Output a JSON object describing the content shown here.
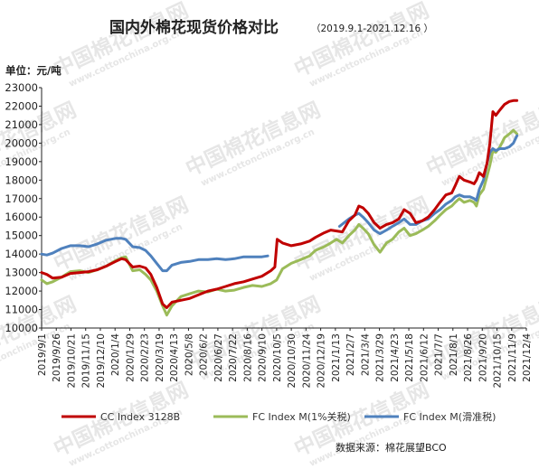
{
  "title": "国内外棉花现货价格对比",
  "subtitle": "（2019.9.1-2021.12.16 ）",
  "unit_label": "单位：元/吨",
  "source_text": "数据来源：棉花展望BCO",
  "watermark": {
    "main": "中国棉花信息网",
    "url": "www.cottonchina.org.cn"
  },
  "chart_data": {
    "type": "line",
    "title": "国内外棉花现货价格对比",
    "subtitle": "（2019.9.1-2021.12.16 ）",
    "ylabel": "单位：元/吨",
    "ylim": [
      10000,
      23000
    ],
    "yticks": [
      10000,
      11000,
      12000,
      13000,
      14000,
      15000,
      16000,
      17000,
      18000,
      19000,
      20000,
      21000,
      22000,
      23000
    ],
    "xlim": [
      "2019-09-01",
      "2021-12-04"
    ],
    "xtick_labels": [
      "2019/9/1",
      "2019/9/26",
      "2019/10/21",
      "2019/11/15",
      "2019/12/10",
      "2020/1/4",
      "2020/1/29",
      "2020/2/23",
      "2020/3/19",
      "2020/4/13",
      "2020/5/8",
      "2020/6/2",
      "2020/6/27",
      "2020/7/22",
      "2020/8/16",
      "2020/9/10",
      "2020/10/5",
      "2020/10/30",
      "2020/11/24",
      "2020/12/19",
      "2021/1/13",
      "2021/2/7",
      "2021/3/4",
      "2021/3/29",
      "2021/4/23",
      "2021/5/18",
      "2021/6/12",
      "2021/7/7",
      "2021/8/1",
      "2021/8/26",
      "2021/9/20",
      "2021/10/15",
      "2021/11/9",
      "2021/12/4"
    ],
    "grid": false,
    "legend": "bottom",
    "series": [
      {
        "name": "CC Index 3128B",
        "color": "#c00000",
        "points": [
          [
            "2019-09-01",
            13000
          ],
          [
            "2019-09-10",
            12900
          ],
          [
            "2019-09-20",
            12700
          ],
          [
            "2019-10-05",
            12750
          ],
          [
            "2019-10-20",
            12950
          ],
          [
            "2019-11-05",
            13000
          ],
          [
            "2019-11-20",
            13050
          ],
          [
            "2019-12-05",
            13150
          ],
          [
            "2019-12-20",
            13350
          ],
          [
            "2020-01-05",
            13600
          ],
          [
            "2020-01-15",
            13750
          ],
          [
            "2020-01-22",
            13700
          ],
          [
            "2020-02-03",
            13300
          ],
          [
            "2020-02-15",
            13350
          ],
          [
            "2020-02-25",
            13250
          ],
          [
            "2020-03-05",
            12900
          ],
          [
            "2020-03-15",
            12200
          ],
          [
            "2020-03-25",
            11300
          ],
          [
            "2020-04-01",
            11100
          ],
          [
            "2020-04-10",
            11400
          ],
          [
            "2020-04-25",
            11500
          ],
          [
            "2020-05-10",
            11600
          ],
          [
            "2020-05-25",
            11800
          ],
          [
            "2020-06-10",
            12000
          ],
          [
            "2020-06-25",
            12100
          ],
          [
            "2020-07-10",
            12250
          ],
          [
            "2020-07-25",
            12400
          ],
          [
            "2020-08-10",
            12500
          ],
          [
            "2020-08-25",
            12650
          ],
          [
            "2020-09-10",
            12800
          ],
          [
            "2020-09-25",
            13100
          ],
          [
            "2020-10-02",
            13300
          ],
          [
            "2020-10-06",
            14800
          ],
          [
            "2020-10-15",
            14600
          ],
          [
            "2020-10-30",
            14450
          ],
          [
            "2020-11-15",
            14550
          ],
          [
            "2020-11-30",
            14700
          ],
          [
            "2020-12-10",
            14900
          ],
          [
            "2020-12-25",
            15150
          ],
          [
            "2021-01-05",
            15300
          ],
          [
            "2021-01-15",
            15250
          ],
          [
            "2021-01-25",
            15200
          ],
          [
            "2021-02-05",
            15800
          ],
          [
            "2021-02-15",
            16100
          ],
          [
            "2021-02-22",
            16600
          ],
          [
            "2021-03-01",
            16500
          ],
          [
            "2021-03-10",
            16200
          ],
          [
            "2021-03-20",
            15700
          ],
          [
            "2021-03-30",
            15400
          ],
          [
            "2021-04-10",
            15600
          ],
          [
            "2021-04-20",
            15700
          ],
          [
            "2021-05-01",
            15900
          ],
          [
            "2021-05-10",
            16400
          ],
          [
            "2021-05-20",
            16200
          ],
          [
            "2021-05-30",
            15700
          ],
          [
            "2021-06-10",
            15800
          ],
          [
            "2021-06-20",
            16000
          ],
          [
            "2021-07-01",
            16400
          ],
          [
            "2021-07-10",
            16800
          ],
          [
            "2021-07-20",
            17200
          ],
          [
            "2021-07-30",
            17300
          ],
          [
            "2021-08-05",
            17700
          ],
          [
            "2021-08-12",
            18200
          ],
          [
            "2021-08-20",
            18000
          ],
          [
            "2021-08-30",
            17900
          ],
          [
            "2021-09-06",
            17800
          ],
          [
            "2021-09-10",
            18000
          ],
          [
            "2021-09-15",
            18400
          ],
          [
            "2021-09-22",
            18200
          ],
          [
            "2021-09-28",
            18900
          ],
          [
            "2021-10-03",
            20000
          ],
          [
            "2021-10-08",
            21700
          ],
          [
            "2021-10-13",
            21500
          ],
          [
            "2021-10-20",
            21800
          ],
          [
            "2021-10-28",
            22100
          ],
          [
            "2021-11-05",
            22250
          ],
          [
            "2021-11-12",
            22300
          ],
          [
            "2021-11-18",
            22300
          ]
        ]
      },
      {
        "name": "FC Index M(1%关税)",
        "color": "#9bbb59",
        "points": [
          [
            "2019-09-01",
            12600
          ],
          [
            "2019-09-10",
            12400
          ],
          [
            "2019-09-20",
            12500
          ],
          [
            "2019-10-05",
            12750
          ],
          [
            "2019-10-20",
            13050
          ],
          [
            "2019-11-05",
            13100
          ],
          [
            "2019-11-20",
            13000
          ],
          [
            "2019-12-05",
            13150
          ],
          [
            "2019-12-20",
            13350
          ],
          [
            "2020-01-05",
            13650
          ],
          [
            "2020-01-15",
            13800
          ],
          [
            "2020-01-22",
            13850
          ],
          [
            "2020-02-03",
            13100
          ],
          [
            "2020-02-15",
            13150
          ],
          [
            "2020-02-25",
            12900
          ],
          [
            "2020-03-05",
            12600
          ],
          [
            "2020-03-15",
            12000
          ],
          [
            "2020-03-25",
            11200
          ],
          [
            "2020-04-01",
            10700
          ],
          [
            "2020-04-10",
            11200
          ],
          [
            "2020-04-25",
            11700
          ],
          [
            "2020-05-10",
            11850
          ],
          [
            "2020-05-25",
            12000
          ],
          [
            "2020-06-10",
            11950
          ],
          [
            "2020-06-25",
            12100
          ],
          [
            "2020-07-10",
            12000
          ],
          [
            "2020-07-25",
            12050
          ],
          [
            "2020-08-10",
            12200
          ],
          [
            "2020-08-25",
            12300
          ],
          [
            "2020-09-10",
            12250
          ],
          [
            "2020-09-25",
            12400
          ],
          [
            "2020-10-05",
            12600
          ],
          [
            "2020-10-15",
            13200
          ],
          [
            "2020-10-30",
            13500
          ],
          [
            "2020-11-15",
            13700
          ],
          [
            "2020-11-30",
            13900
          ],
          [
            "2020-12-10",
            14200
          ],
          [
            "2020-12-25",
            14400
          ],
          [
            "2021-01-05",
            14600
          ],
          [
            "2021-01-15",
            14800
          ],
          [
            "2021-01-25",
            14600
          ],
          [
            "2021-02-05",
            15000
          ],
          [
            "2021-02-15",
            15300
          ],
          [
            "2021-02-22",
            15600
          ],
          [
            "2021-03-01",
            15400
          ],
          [
            "2021-03-10",
            15100
          ],
          [
            "2021-03-20",
            14500
          ],
          [
            "2021-03-30",
            14100
          ],
          [
            "2021-04-10",
            14600
          ],
          [
            "2021-04-20",
            14800
          ],
          [
            "2021-05-01",
            15200
          ],
          [
            "2021-05-10",
            15400
          ],
          [
            "2021-05-20",
            15000
          ],
          [
            "2021-05-30",
            15100
          ],
          [
            "2021-06-10",
            15300
          ],
          [
            "2021-06-20",
            15500
          ],
          [
            "2021-07-01",
            15800
          ],
          [
            "2021-07-10",
            16100
          ],
          [
            "2021-07-20",
            16400
          ],
          [
            "2021-07-30",
            16600
          ],
          [
            "2021-08-05",
            16800
          ],
          [
            "2021-08-12",
            17000
          ],
          [
            "2021-08-20",
            16800
          ],
          [
            "2021-08-30",
            16900
          ],
          [
            "2021-09-06",
            16800
          ],
          [
            "2021-09-10",
            16600
          ],
          [
            "2021-09-15",
            17200
          ],
          [
            "2021-09-22",
            17500
          ],
          [
            "2021-09-28",
            18200
          ],
          [
            "2021-10-03",
            18800
          ],
          [
            "2021-10-08",
            19600
          ],
          [
            "2021-10-13",
            19500
          ],
          [
            "2021-10-20",
            19800
          ],
          [
            "2021-10-28",
            20300
          ],
          [
            "2021-11-05",
            20500
          ],
          [
            "2021-11-12",
            20700
          ],
          [
            "2021-11-18",
            20500
          ]
        ]
      },
      {
        "name": "FC Index M(滑准税)",
        "color": "#4f81bd",
        "points": [
          [
            "2019-09-01",
            14000
          ],
          [
            "2019-09-10",
            13950
          ],
          [
            "2019-09-20",
            14050
          ],
          [
            "2019-10-05",
            14300
          ],
          [
            "2019-10-20",
            14450
          ],
          [
            "2019-11-05",
            14450
          ],
          [
            "2019-11-20",
            14400
          ],
          [
            "2019-12-05",
            14550
          ],
          [
            "2019-12-20",
            14750
          ],
          [
            "2020-01-05",
            14850
          ],
          [
            "2020-01-15",
            14850
          ],
          [
            "2020-01-22",
            14800
          ],
          [
            "2020-02-03",
            14400
          ],
          [
            "2020-02-15",
            14350
          ],
          [
            "2020-02-25",
            14200
          ],
          [
            "2020-03-05",
            13900
          ],
          [
            "2020-03-15",
            13500
          ],
          [
            "2020-03-25",
            13100
          ],
          [
            "2020-04-01",
            13100
          ],
          [
            "2020-04-10",
            13400
          ],
          [
            "2020-04-25",
            13550
          ],
          [
            "2020-05-10",
            13600
          ],
          [
            "2020-05-25",
            13700
          ],
          [
            "2020-06-10",
            13700
          ],
          [
            "2020-06-25",
            13750
          ],
          [
            "2020-07-10",
            13700
          ],
          [
            "2020-07-25",
            13750
          ],
          [
            "2020-08-10",
            13850
          ],
          [
            "2020-08-25",
            13850
          ],
          [
            "2020-09-10",
            13850
          ],
          [
            "2020-09-20",
            13900
          ]
        ]
      },
      {
        "name": "FC Index M(滑准税)",
        "color": "#4f81bd",
        "points": [
          [
            "2021-01-20",
            15500
          ],
          [
            "2021-02-05",
            15900
          ],
          [
            "2021-02-15",
            16100
          ],
          [
            "2021-02-22",
            16200
          ],
          [
            "2021-03-01",
            16000
          ],
          [
            "2021-03-10",
            15700
          ],
          [
            "2021-03-20",
            15300
          ],
          [
            "2021-03-30",
            15100
          ],
          [
            "2021-04-10",
            15300
          ],
          [
            "2021-04-20",
            15500
          ],
          [
            "2021-05-01",
            15700
          ],
          [
            "2021-05-10",
            15900
          ],
          [
            "2021-05-20",
            15600
          ],
          [
            "2021-05-30",
            15600
          ],
          [
            "2021-06-10",
            15800
          ],
          [
            "2021-06-20",
            15900
          ],
          [
            "2021-07-01",
            16200
          ],
          [
            "2021-07-10",
            16400
          ],
          [
            "2021-07-20",
            16700
          ],
          [
            "2021-07-30",
            16900
          ],
          [
            "2021-08-05",
            17100
          ],
          [
            "2021-08-12",
            17200
          ],
          [
            "2021-08-20",
            17100
          ],
          [
            "2021-08-30",
            17100
          ],
          [
            "2021-09-06",
            17000
          ],
          [
            "2021-09-10",
            16900
          ],
          [
            "2021-09-15",
            17500
          ],
          [
            "2021-09-22",
            18000
          ],
          [
            "2021-09-28",
            18900
          ],
          [
            "2021-10-03",
            19500
          ],
          [
            "2021-10-08",
            19700
          ],
          [
            "2021-10-13",
            19600
          ],
          [
            "2021-10-20",
            19700
          ],
          [
            "2021-10-28",
            19700
          ],
          [
            "2021-11-05",
            19800
          ],
          [
            "2021-11-12",
            20000
          ],
          [
            "2021-11-18",
            20400
          ]
        ]
      }
    ]
  }
}
